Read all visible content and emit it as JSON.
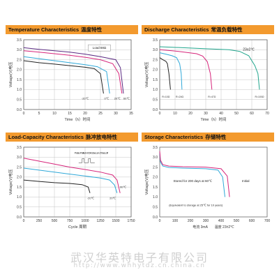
{
  "panels": [
    {
      "header_en": "Temperature Characteristics",
      "header_cn": "温度特性"
    },
    {
      "header_en": "Discharge Characteristics",
      "header_cn": "常温负载特性"
    },
    {
      "header_en": "Load-Capacity Characteristics",
      "header_cn": "脉冲放电特性"
    },
    {
      "header_en": "Storage Characteristics",
      "header_cn": "存储特性"
    }
  ],
  "chart_data": [
    {
      "type": "line",
      "title": "Temperature Characteristics 温度特性",
      "xlabel": "Time（h）时间",
      "ylabel": "Voltage(V)电压",
      "xlim": [
        0,
        35
      ],
      "ylim": [
        0,
        3.5
      ],
      "x_ticks": [
        0,
        5,
        10,
        15,
        20,
        25,
        30,
        35
      ],
      "y_ticks": [
        0,
        0.5,
        1.0,
        1.5,
        2.0,
        2.5,
        3.0,
        3.5
      ],
      "grid": true,
      "legend_box": "Load:68Ω",
      "series": [
        {
          "name": "-20℃",
          "color": "#222222",
          "points": [
            [
              0,
              2.45
            ],
            [
              5,
              2.35
            ],
            [
              10,
              2.28
            ],
            [
              15,
              2.2
            ],
            [
              20,
              2.12
            ],
            [
              23,
              2.05
            ],
            [
              25,
              1.8
            ],
            [
              26,
              0.8
            ]
          ]
        },
        {
          "name": "0℃",
          "color": "#2fa8d8",
          "points": [
            [
              0,
              2.65
            ],
            [
              5,
              2.55
            ],
            [
              10,
              2.45
            ],
            [
              15,
              2.35
            ],
            [
              20,
              2.25
            ],
            [
              24,
              2.15
            ],
            [
              27,
              1.9
            ],
            [
              28,
              0.8
            ]
          ]
        },
        {
          "name": "20℃",
          "color": "#d6247a",
          "points": [
            [
              0,
              2.95
            ],
            [
              5,
              2.88
            ],
            [
              10,
              2.8
            ],
            [
              15,
              2.72
            ],
            [
              20,
              2.62
            ],
            [
              25,
              2.5
            ],
            [
              29,
              2.3
            ],
            [
              31,
              1.8
            ],
            [
              32,
              0.8
            ]
          ]
        },
        {
          "name": "60℃",
          "color": "#5a2a82",
          "points": [
            [
              0,
              3.1
            ],
            [
              5,
              3.02
            ],
            [
              10,
              2.95
            ],
            [
              15,
              2.88
            ],
            [
              20,
              2.78
            ],
            [
              25,
              2.65
            ],
            [
              30,
              2.5
            ],
            [
              31.5,
              2.1
            ],
            [
              32.5,
              0.8
            ]
          ]
        }
      ]
    },
    {
      "type": "line",
      "title": "Discharge Characteristics 常温负载特性",
      "xlabel": "Time（h）时间",
      "ylabel": "Voltage(V)电压",
      "xlim": [
        0,
        70
      ],
      "ylim": [
        0,
        3.5
      ],
      "x_ticks": [
        0,
        10,
        20,
        30,
        40,
        50,
        60,
        70
      ],
      "y_ticks": [
        0,
        0.5,
        1.0,
        1.5,
        2.0,
        2.5,
        3.0,
        3.5
      ],
      "grid": true,
      "legend_box": "23±2℃",
      "series": [
        {
          "name": "R=10Ω",
          "color": "#222222",
          "points": [
            [
              0,
              2.6
            ],
            [
              2,
              2.5
            ],
            [
              4,
              2.42
            ],
            [
              5,
              2.3
            ],
            [
              6,
              1.8
            ],
            [
              7,
              1.0
            ]
          ]
        },
        {
          "name": "R=24Ω",
          "color": "#2fa8d8",
          "points": [
            [
              0,
              2.85
            ],
            [
              4,
              2.78
            ],
            [
              8,
              2.7
            ],
            [
              11,
              2.6
            ],
            [
              13,
              2.3
            ],
            [
              14,
              1.8
            ],
            [
              14.5,
              1.0
            ]
          ]
        },
        {
          "name": "R=47Ω",
          "color": "#d6247a",
          "points": [
            [
              0,
              3.0
            ],
            [
              8,
              2.95
            ],
            [
              16,
              2.88
            ],
            [
              24,
              2.8
            ],
            [
              28,
              2.68
            ],
            [
              31,
              2.4
            ],
            [
              33,
              1.8
            ],
            [
              34,
              1.0
            ]
          ]
        },
        {
          "name": "R=100Ω",
          "color": "#1fa58c",
          "points": [
            [
              0,
              3.15
            ],
            [
              15,
              3.1
            ],
            [
              30,
              3.05
            ],
            [
              45,
              3.0
            ],
            [
              52,
              2.92
            ],
            [
              58,
              2.7
            ],
            [
              62,
              2.2
            ],
            [
              64,
              1.8
            ],
            [
              65,
              1.0
            ]
          ]
        }
      ]
    },
    {
      "type": "line",
      "title": "Load-Capacity Characteristics 脉冲放电特性",
      "xlabel": "Cycle 周期",
      "ylabel": "Voltage(V)电压",
      "xlim": [
        0,
        1750
      ],
      "ylim": [
        0,
        3.5
      ],
      "x_ticks": [
        0,
        250,
        500,
        750,
        1000,
        1250,
        1500,
        1750
      ],
      "y_ticks": [
        0,
        0.5,
        1.0,
        1.5,
        2.0,
        2.5,
        3.0,
        3.5
      ],
      "grid": true,
      "legend_box": "Pulse Pattern 0.5A 2sec.on 27sec.off",
      "series": [
        {
          "name": "-20℃",
          "color": "#222222",
          "points": [
            [
              0,
              1.85
            ],
            [
              250,
              1.78
            ],
            [
              500,
              1.72
            ],
            [
              750,
              1.68
            ],
            [
              950,
              1.62
            ],
            [
              1050,
              1.5
            ],
            [
              1080,
              1.2
            ]
          ]
        },
        {
          "name": "20℃",
          "color": "#2fa8d8",
          "points": [
            [
              0,
              2.45
            ],
            [
              250,
              2.35
            ],
            [
              500,
              2.25
            ],
            [
              750,
              2.15
            ],
            [
              1000,
              2.05
            ],
            [
              1250,
              1.95
            ],
            [
              1400,
              1.85
            ],
            [
              1480,
              1.6
            ],
            [
              1520,
              1.2
            ]
          ]
        },
        {
          "name": "60℃",
          "color": "#d6247a",
          "points": [
            [
              0,
              2.95
            ],
            [
              250,
              2.8
            ],
            [
              500,
              2.65
            ],
            [
              750,
              2.5
            ],
            [
              1000,
              2.38
            ],
            [
              1250,
              2.25
            ],
            [
              1450,
              2.1
            ],
            [
              1520,
              1.85
            ],
            [
              1570,
              1.2
            ]
          ]
        }
      ]
    },
    {
      "type": "line",
      "title": "Storage Characteristics 存储特性",
      "xlabel": "",
      "ylabel": "Voltage(V)电压",
      "xlim": [
        0,
        700
      ],
      "ylim": [
        0,
        3.5
      ],
      "x_ticks": [
        0,
        100,
        200,
        300,
        400,
        500,
        600,
        700
      ],
      "y_ticks": [
        0,
        0.5,
        1.0,
        1.5,
        2.0,
        2.5,
        3.0,
        3.5
      ],
      "grid": false,
      "labels": [
        "Stored for 200 days at 60℃",
        "Initial"
      ],
      "note": "(Equivalent to storage at 25℃ for 10 years)",
      "footer": "电流 3mA　　温度 23±2℃",
      "series": [
        {
          "name": "Stored for 200 days at 60℃",
          "color": "#2fa8d8",
          "points": [
            [
              0,
              3.2
            ],
            [
              5,
              2.75
            ],
            [
              20,
              2.55
            ],
            [
              60,
              2.48
            ],
            [
              150,
              2.45
            ],
            [
              300,
              2.42
            ],
            [
              380,
              2.35
            ],
            [
              410,
              2.0
            ],
            [
              425,
              1.0
            ]
          ]
        },
        {
          "name": "Initial",
          "color": "#d6247a",
          "points": [
            [
              0,
              3.3
            ],
            [
              5,
              2.85
            ],
            [
              20,
              2.62
            ],
            [
              60,
              2.55
            ],
            [
              150,
              2.52
            ],
            [
              300,
              2.5
            ],
            [
              400,
              2.42
            ],
            [
              440,
              2.05
            ],
            [
              455,
              1.0
            ]
          ]
        }
      ]
    }
  ],
  "watermark": {
    "line1": "武汉华英特电子有限公司",
    "line2": "http://www.whhytdz.cn.china.cn"
  }
}
